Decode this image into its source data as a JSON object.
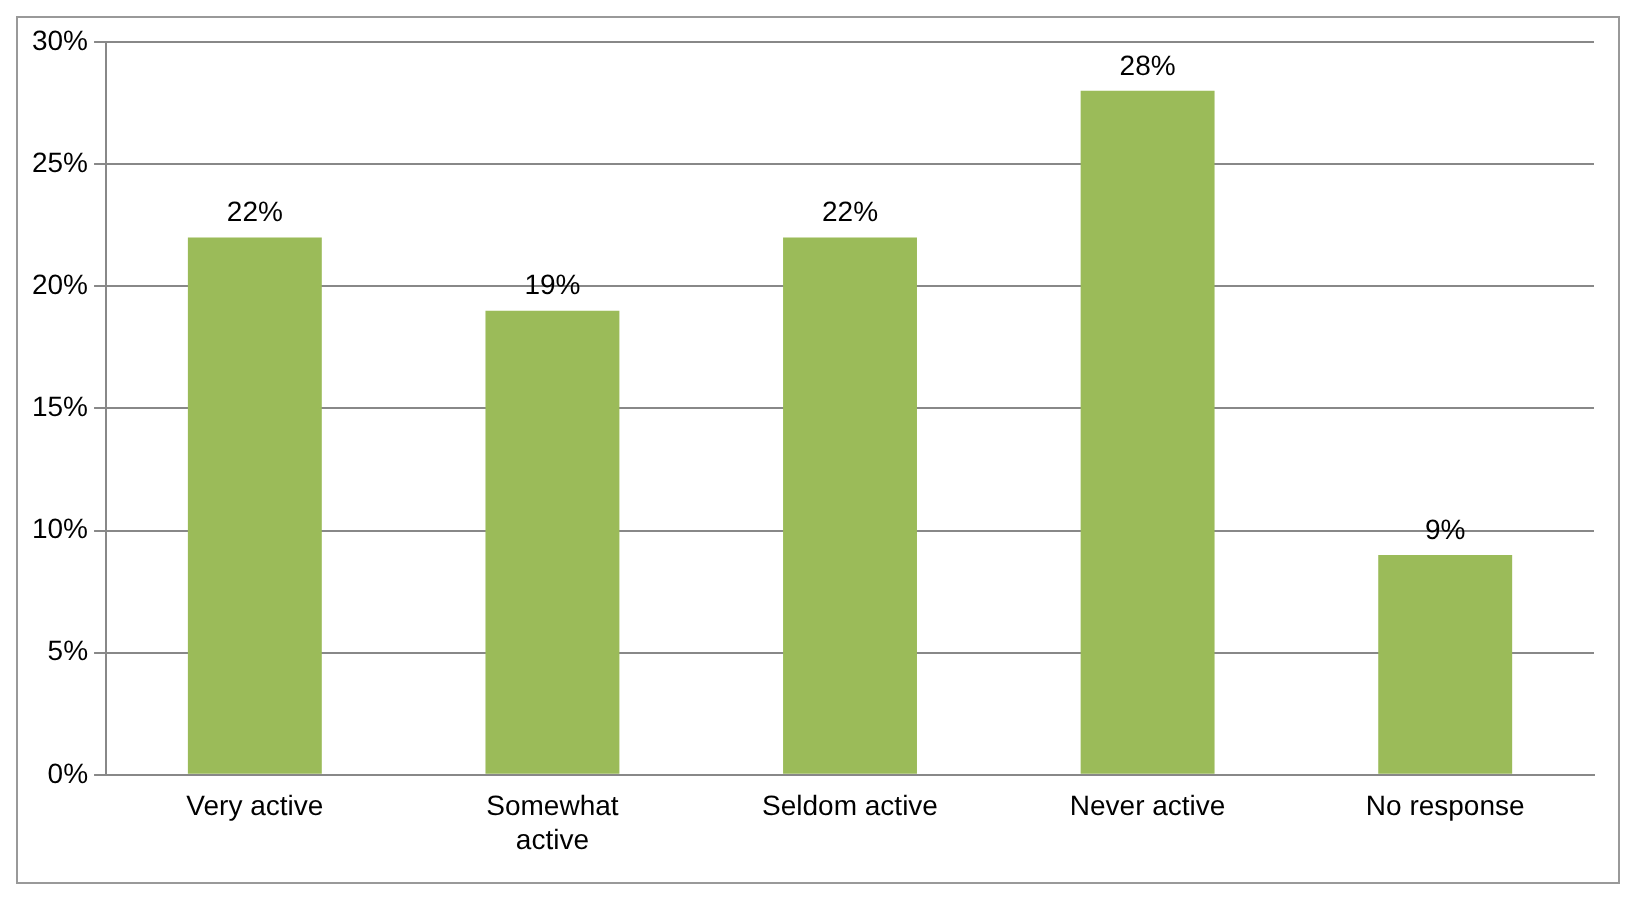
{
  "chart_data": {
    "type": "bar",
    "categories": [
      "Very active",
      "Somewhat active",
      "Seldom active",
      "Never active",
      "No response"
    ],
    "values": [
      22,
      19,
      22,
      28,
      9
    ],
    "color": "#9bbb59",
    "ylim": [
      0,
      30
    ],
    "yticks": [
      {
        "value": 0,
        "label": "0%"
      },
      {
        "value": 5,
        "label": "5%"
      },
      {
        "value": 10,
        "label": "10%"
      },
      {
        "value": 15,
        "label": "15%"
      },
      {
        "value": 20,
        "label": "20%"
      },
      {
        "value": 25,
        "label": "25%"
      },
      {
        "value": 30,
        "label": "30%"
      }
    ],
    "value_labels": [
      "22%",
      "19%",
      "22%",
      "28%",
      "9%"
    ],
    "grid": "y",
    "legend": false
  }
}
